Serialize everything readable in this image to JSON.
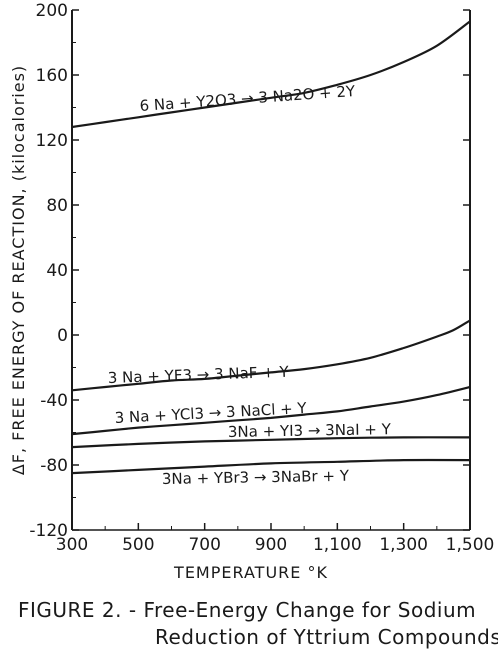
{
  "chart_data": {
    "type": "line",
    "title": "",
    "xlabel": "TEMPERATURE °K",
    "ylabel": "ΔF, FREE ENERGY OF REACTION, (kilocalories)",
    "xlim": [
      300,
      1500
    ],
    "ylim": [
      -120,
      200
    ],
    "x_ticks": [
      "300",
      "500",
      "700",
      "900",
      "1,100",
      "1,300",
      "1,500"
    ],
    "y_ticks": [
      "200",
      "160",
      "120",
      "80",
      "40",
      "0",
      "-40",
      "-80",
      "-120"
    ],
    "grid": false,
    "series": [
      {
        "name": "6 Na + Y2O3 → 3 Na2O + 2Y",
        "x": [
          300,
          400,
          500,
          600,
          700,
          800,
          900,
          1000,
          1100,
          1200,
          1300,
          1400,
          1500
        ],
        "y": [
          128,
          131,
          134,
          137,
          140,
          143,
          146,
          149,
          154,
          160,
          168,
          178,
          193
        ]
      },
      {
        "name": "3 Na + YF3 → 3 NaF + Y",
        "x": [
          300,
          400,
          500,
          600,
          700,
          800,
          900,
          1000,
          1100,
          1200,
          1300,
          1400,
          1450,
          1500
        ],
        "y": [
          -34,
          -32,
          -30,
          -28,
          -27,
          -25,
          -23,
          -21,
          -18,
          -14,
          -8,
          -1,
          3,
          9
        ]
      },
      {
        "name": "3 Na + YCl3 → 3 NaCl + Y",
        "x": [
          300,
          400,
          500,
          600,
          700,
          800,
          900,
          1000,
          1100,
          1200,
          1300,
          1400,
          1500
        ],
        "y": [
          -61,
          -59,
          -57,
          -55.5,
          -54,
          -52.5,
          -51,
          -49,
          -47,
          -44,
          -41,
          -37,
          -32
        ]
      },
      {
        "name": "3Na + YI3 → 3NaI + Y",
        "x": [
          300,
          500,
          700,
          900,
          1100,
          1300,
          1500
        ],
        "y": [
          -69,
          -67,
          -65.5,
          -64.5,
          -63.5,
          -63,
          -63
        ]
      },
      {
        "name": "3Na + YBr3 → 3NaBr + Y",
        "x": [
          300,
          500,
          700,
          900,
          1100,
          1300,
          1500
        ],
        "y": [
          -85,
          -83,
          -81,
          -79,
          -78,
          -77,
          -77
        ]
      }
    ],
    "annotations": [
      {
        "text": "6 Na + Y2O3 → 3 Na2O + 2Y",
        "series": 0
      },
      {
        "text": "3 Na + YF3 → 3 NaF + Y",
        "series": 1
      },
      {
        "text": "3 Na + YCl3 → 3 NaCl + Y",
        "series": 2
      },
      {
        "text": "3Na + YI3 → 3NaI + Y",
        "series": 3
      },
      {
        "text": "3Na + YBr3 → 3NaBr + Y",
        "series": 4
      }
    ]
  },
  "caption": {
    "line1": "FIGURE 2. - Free-Energy Change for Sodium",
    "line2": "Reduction of Yttrium Compounds."
  },
  "colors": {
    "ink": "#1a1a1a",
    "background": "#ffffff"
  }
}
